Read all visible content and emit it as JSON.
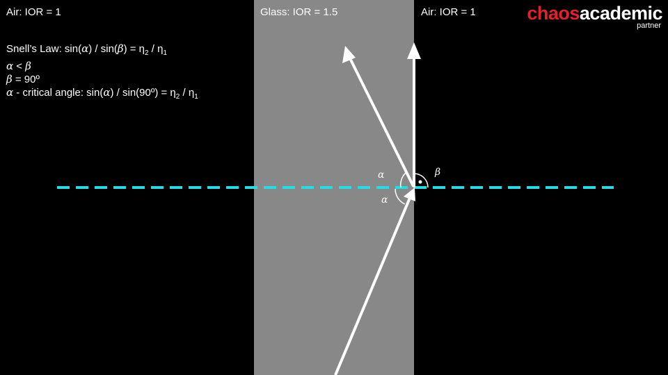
{
  "regions": {
    "left_label": "Air: IOR = 1",
    "middle_label": "Glass: IOR = 1.5",
    "right_label": "Air: IOR = 1"
  },
  "formulas": {
    "line1_prefix": "Snell’s Law: sin(",
    "alpha": "α",
    "beta": "β",
    "line1_mid": ") / sin(",
    "line1_suffix": ") = η",
    "sub2": "2",
    "slash_eta": " / η",
    "sub1": "1",
    "line2_lt": " < ",
    "line3_rest": " = 90º",
    "line4_mid": " - critical angle: sin(",
    "line4_suffix": ") / sin(90º) = η"
  },
  "logo": {
    "part1": "chaos",
    "part2": "academic",
    "sub": "partner"
  },
  "angle_labels": {
    "alpha_top": "α",
    "alpha_bottom": "α",
    "beta": "β"
  },
  "colors": {
    "background": "#000000",
    "glass": "#888888",
    "normal_line": "#22dde8",
    "rays": "#ffffff",
    "logo_red": "#e4202e",
    "text": "#ffffff"
  }
}
